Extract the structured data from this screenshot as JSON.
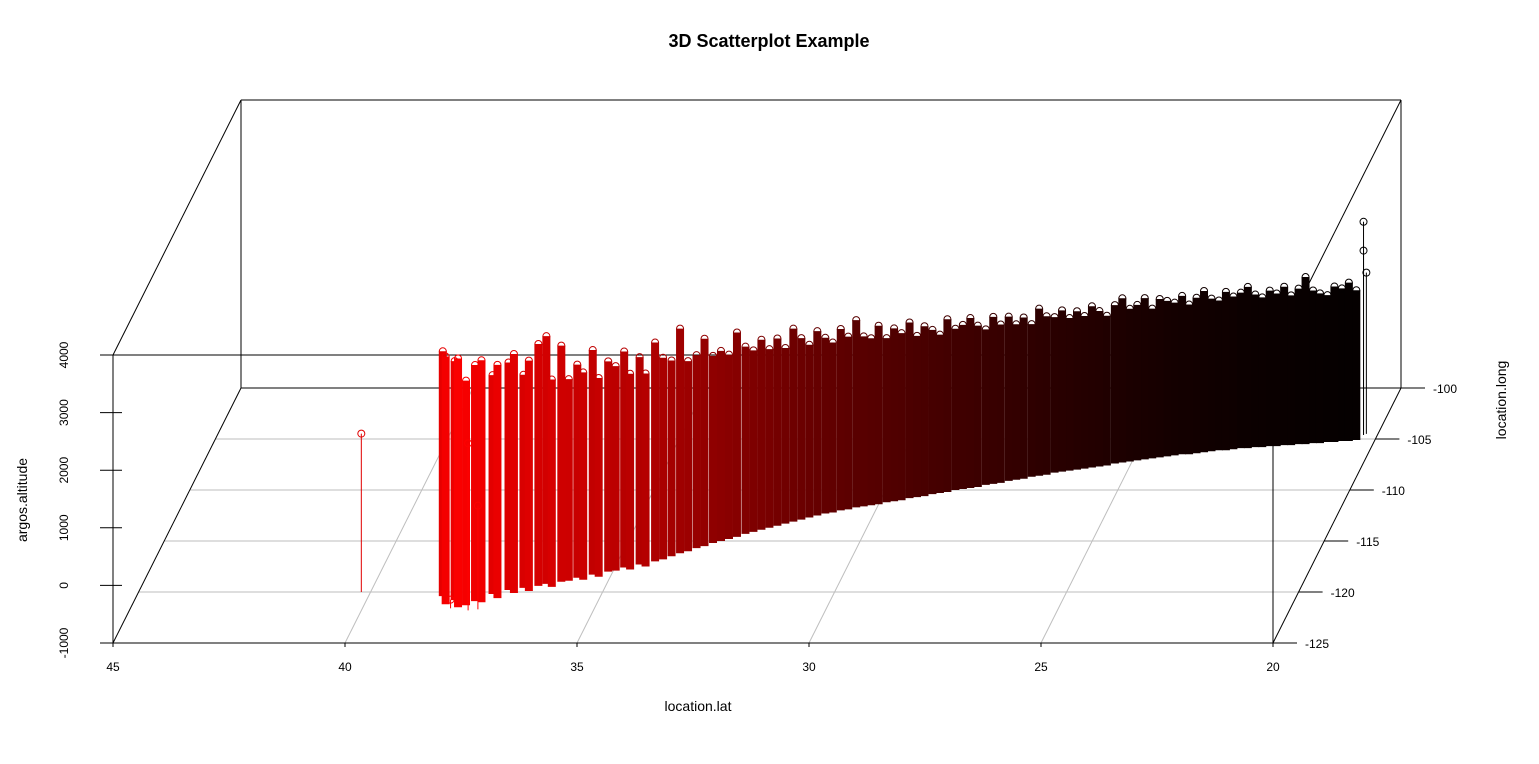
{
  "chart_data": {
    "type": "scatter",
    "subtype": "3d-scatter-with-drop-lines",
    "title": "3D Scatterplot Example",
    "xlabel": "location.lat",
    "ylabel": "location.long",
    "zlabel": "argos.altitude",
    "xlim": [
      45,
      20
    ],
    "ylim": [
      -125,
      -100
    ],
    "zlim": [
      -1000,
      4000
    ],
    "x_ticks": [
      "45",
      "40",
      "35",
      "30",
      "25",
      "20"
    ],
    "y_ticks": [
      "-125",
      "-120",
      "-115",
      "-110",
      "-105",
      "-100"
    ],
    "z_ticks": [
      "-1000",
      "0",
      "1000",
      "2000",
      "3000",
      "4000"
    ],
    "grid": true,
    "color_gradient": [
      "#ff0000",
      "#000000"
    ],
    "points": {
      "lat": [
        38.4,
        38.25,
        38.1,
        37.95,
        37.8,
        37.65,
        37.5,
        37.35,
        37.2,
        37.05,
        36.9,
        36.75,
        36.6,
        36.45,
        36.3,
        36.15,
        36.0,
        35.85,
        35.7,
        35.55,
        35.4,
        35.25,
        35.1,
        34.95,
        34.8,
        34.65,
        34.5,
        34.35,
        34.2,
        34.05,
        33.9,
        33.75,
        33.6,
        33.45,
        33.3,
        33.15,
        33.0,
        32.85,
        32.7,
        32.55,
        32.4,
        32.25,
        32.1,
        31.95,
        31.8,
        31.65,
        31.5,
        31.35,
        31.2,
        31.05,
        30.9,
        30.75,
        30.6,
        30.45,
        30.3,
        30.15,
        30.0,
        29.85,
        29.7,
        29.55,
        29.4,
        29.25,
        29.1,
        28.95,
        28.8,
        28.65,
        28.5,
        28.35,
        28.2,
        28.05,
        27.9,
        27.75,
        27.6,
        27.45,
        27.3,
        27.15,
        27.0,
        26.85,
        26.7,
        26.55,
        26.4,
        26.25,
        26.1,
        25.95,
        25.8,
        25.65,
        25.5,
        25.35,
        25.2,
        25.05,
        24.9,
        24.75,
        24.6,
        24.45,
        24.3,
        24.15,
        24.0,
        23.85,
        23.7,
        23.55,
        23.4,
        23.25,
        23.1,
        22.95,
        22.8,
        22.65,
        22.5,
        22.35,
        22.2,
        22.05,
        21.9,
        21.75,
        21.6,
        21.45,
        21.3,
        21.15,
        21.0,
        20.85,
        20.7,
        20.55,
        20.4,
        40.2,
        38.1,
        37.7,
        37.5,
        20.3,
        20.3,
        20.25
      ],
      "long": [
        -120.4,
        -121.2,
        -120.8,
        -121.5,
        -121.3,
        -120.9,
        -121.0,
        -120.2,
        -120.6,
        -119.8,
        -120.1,
        -119.6,
        -119.9,
        -119.4,
        -119.2,
        -119.5,
        -119.0,
        -118.9,
        -118.6,
        -118.8,
        -118.3,
        -118.5,
        -118.0,
        -117.9,
        -117.6,
        -117.8,
        -117.3,
        -117.5,
        -117.0,
        -116.8,
        -116.5,
        -116.2,
        -116.0,
        -115.7,
        -115.5,
        -115.2,
        -115.0,
        -114.8,
        -114.6,
        -114.3,
        -114.1,
        -113.9,
        -113.7,
        -113.5,
        -113.3,
        -113.1,
        -112.9,
        -112.7,
        -112.5,
        -112.3,
        -112.2,
        -112.0,
        -111.9,
        -111.7,
        -111.6,
        -111.5,
        -111.4,
        -111.2,
        -111.1,
        -111.0,
        -110.8,
        -110.7,
        -110.6,
        -110.4,
        -110.3,
        -110.2,
        -110.0,
        -109.9,
        -109.8,
        -109.7,
        -109.5,
        -109.4,
        -109.3,
        -109.1,
        -109.0,
        -108.9,
        -108.7,
        -108.6,
        -108.5,
        -108.3,
        -108.2,
        -108.1,
        -108.0,
        -107.9,
        -107.8,
        -107.7,
        -107.6,
        -107.4,
        -107.3,
        -107.2,
        -107.1,
        -107.0,
        -106.9,
        -106.8,
        -106.7,
        -106.6,
        -106.5,
        -106.5,
        -106.4,
        -106.3,
        -106.2,
        -106.1,
        -106.1,
        -106.0,
        -105.9,
        -105.9,
        -105.8,
        -105.8,
        -105.7,
        -105.7,
        -105.6,
        -105.6,
        -105.5,
        -105.5,
        -105.4,
        -105.4,
        -105.3,
        -105.3,
        -105.2,
        -105.2,
        -105.1,
        -120.0,
        -121.6,
        -121.8,
        -121.7,
        -104.6,
        -104.6,
        -104.5
      ],
      "altitude": [
        3250,
        3300,
        3150,
        3320,
        2900,
        3100,
        3200,
        2800,
        3050,
        2950,
        3150,
        2700,
        3000,
        3200,
        3300,
        2600,
        3100,
        2500,
        2700,
        2600,
        2900,
        2450,
        2650,
        2550,
        2750,
        2400,
        2600,
        2350,
        2800,
        2500,
        2400,
        2900,
        2300,
        2350,
        2600,
        2250,
        2300,
        2200,
        2550,
        2250,
        2150,
        2300,
        2100,
        2250,
        2050,
        2350,
        2150,
        2000,
        2200,
        2050,
        1950,
        2150,
        2000,
        2250,
        1950,
        1900,
        2100,
        1850,
        2000,
        1900,
        2050,
        1800,
        1950,
        1850,
        1750,
        2000,
        1800,
        1850,
        1950,
        1800,
        1700,
        1900,
        1750,
        1850,
        1700,
        1800,
        1650,
        1900,
        1750,
        1700,
        1800,
        1650,
        1750,
        1650,
        1800,
        1700,
        1600,
        1750,
        1850,
        1650,
        1700,
        1800,
        1600,
        1750,
        1700,
        1650,
        1750,
        1600,
        1700,
        1800,
        1650,
        1600,
        1750,
        1650,
        1700,
        1800,
        1650,
        1600,
        1700,
        1650,
        1750,
        1600,
        1700,
        1900,
        1650,
        1600,
        1550,
        1700,
        1650,
        1750,
        1600,
        1750,
        -850,
        1900,
        800,
        2700,
        2200,
        1800
      ]
    }
  }
}
